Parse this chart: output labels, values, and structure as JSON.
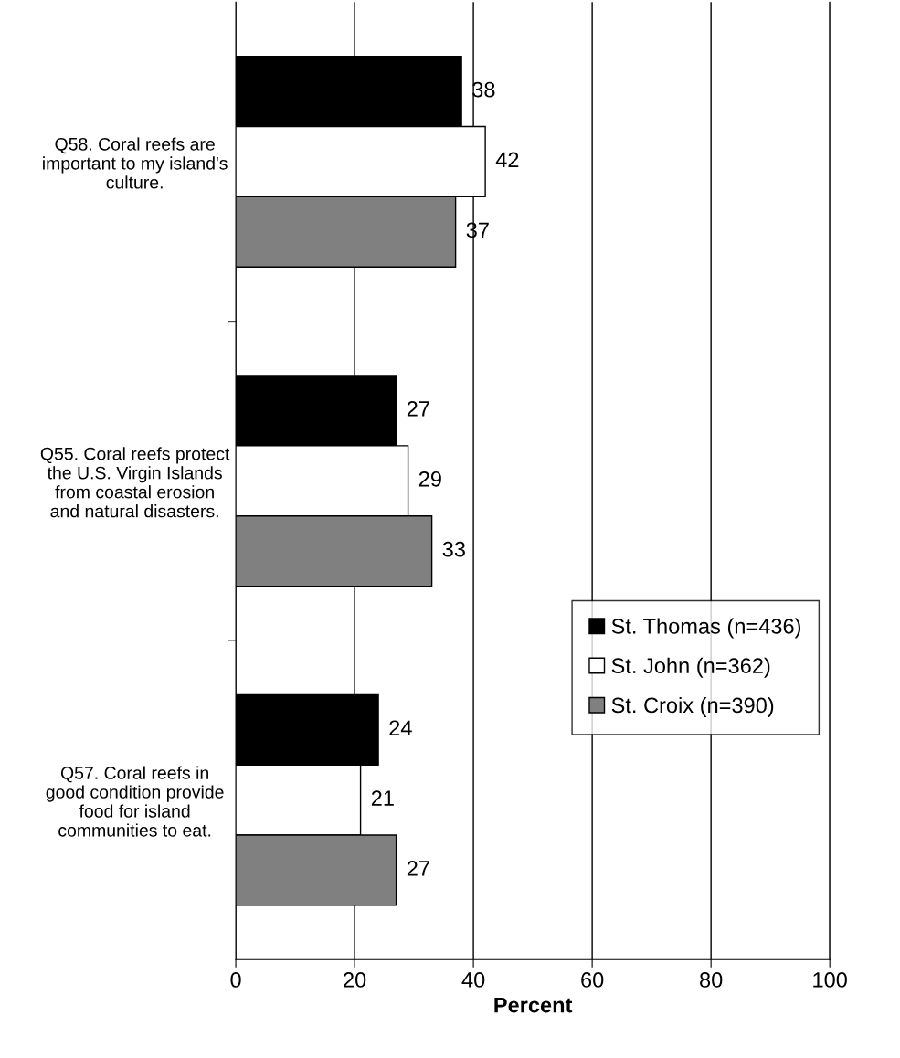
{
  "chart_data": {
    "type": "bar",
    "orientation": "horizontal",
    "xlabel": "Percent",
    "categories": [
      "Q58. Coral reefs are\nimportant to my island's\nculture.",
      "Q55. Coral reefs protect\nthe U.S. Virgin Islands\nfrom coastal erosion\nand natural disasters.",
      "Q57. Coral reefs in\ngood condition provide\nfood for island\ncommunities to eat."
    ],
    "series": [
      {
        "name": "St. Thomas (n=436)",
        "color": "#000000",
        "values": [
          38,
          27,
          24
        ]
      },
      {
        "name": "St. John (n=362)",
        "color": "#ffffff",
        "values": [
          42,
          29,
          21
        ]
      },
      {
        "name": "St. Croix (n=390)",
        "color": "#808080",
        "values": [
          37,
          33,
          27
        ]
      }
    ],
    "xlim": [
      0,
      100
    ],
    "xticks": [
      0,
      20,
      40,
      60,
      80,
      100
    ],
    "grid": "x",
    "legend": "right",
    "data_labels": true
  }
}
